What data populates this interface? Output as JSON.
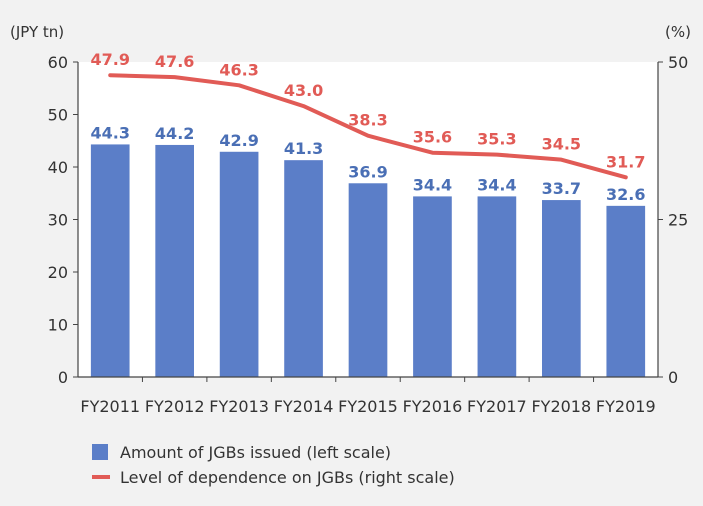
{
  "chart_data": {
    "type": "bar",
    "categories": [
      "FY2011",
      "FY2012",
      "FY2013",
      "FY2014",
      "FY2015",
      "FY2016",
      "FY2017",
      "FY2018",
      "FY2019"
    ],
    "series": [
      {
        "name": "Amount of JGBs issued (left scale)",
        "type": "bar",
        "axis": "left",
        "color": "#5b7ec8",
        "label_color": "#4a6fb5",
        "values": [
          44.3,
          44.2,
          42.9,
          41.3,
          36.9,
          34.4,
          34.4,
          33.7,
          32.6
        ]
      },
      {
        "name": "Level of dependence on JGBs (right scale)",
        "type": "line",
        "axis": "right",
        "color": "#e15b56",
        "values": [
          47.9,
          47.6,
          46.3,
          43.0,
          38.3,
          35.6,
          35.3,
          34.5,
          31.7
        ]
      }
    ],
    "left_axis": {
      "unit": "(JPY tn)",
      "range": [
        0,
        60
      ],
      "ticks": [
        "0",
        "10",
        "20",
        "30",
        "40",
        "50",
        "60"
      ]
    },
    "right_axis": {
      "unit": "(%)",
      "range": [
        0,
        50
      ],
      "ticks": [
        "0",
        "25",
        "50"
      ]
    },
    "grid": false,
    "legend_position": "bottom-left"
  }
}
